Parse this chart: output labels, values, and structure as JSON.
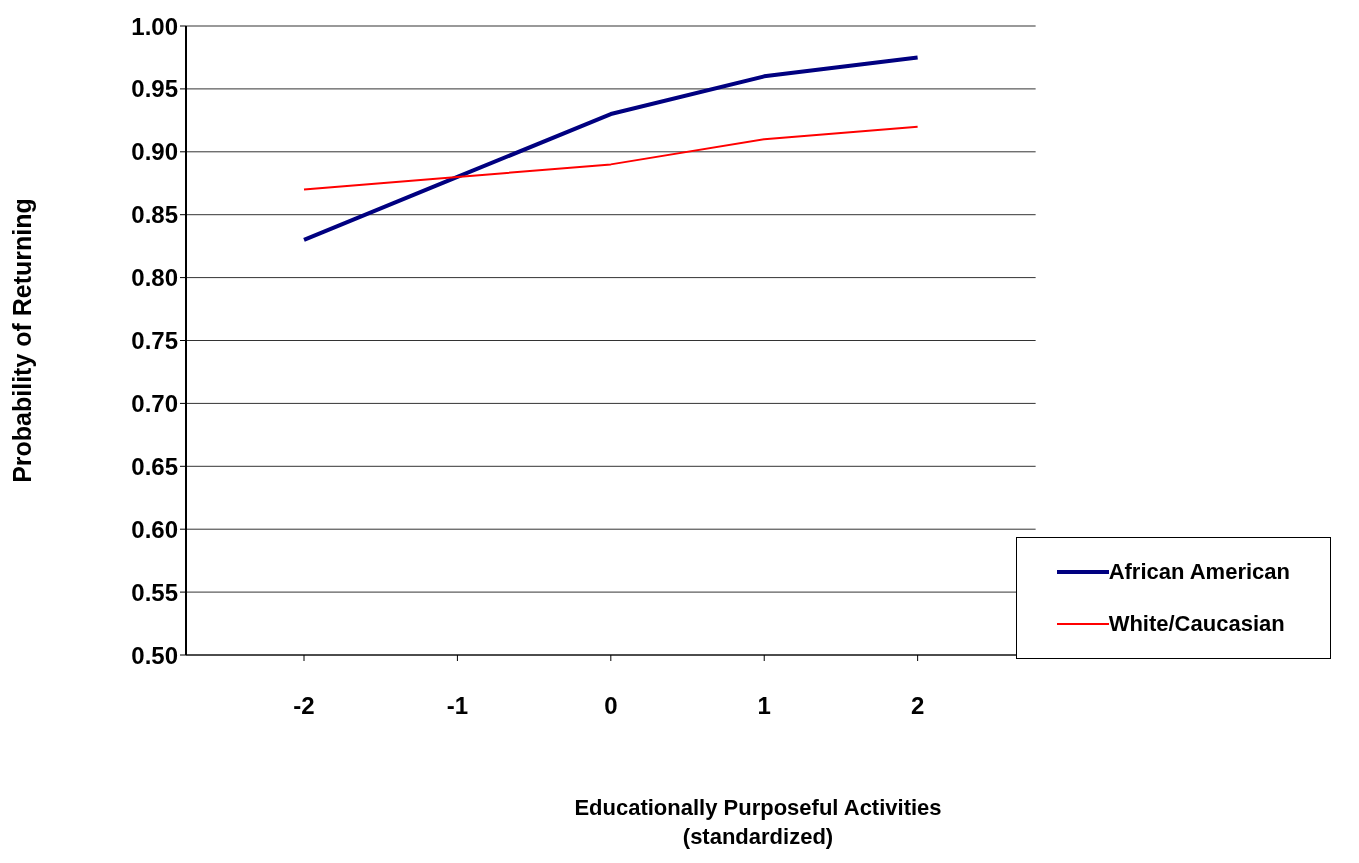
{
  "chart_data": {
    "type": "line",
    "xlabel": "Educationally Purposeful Activities\n(standardized)",
    "ylabel": "Probability of Returning",
    "categories": [
      "-2",
      "-1",
      "0",
      "1",
      "2"
    ],
    "series": [
      {
        "name": "African American",
        "color": "#000080",
        "values": [
          0.83,
          0.88,
          0.93,
          0.96,
          0.975
        ]
      },
      {
        "name": "White/Caucasian",
        "color": "#ff0000",
        "values": [
          0.87,
          0.88,
          0.89,
          0.91,
          0.92
        ]
      }
    ],
    "ylim": [
      0.5,
      1.0
    ],
    "yticks": [
      {
        "value": 0.5,
        "label": "0.50"
      },
      0.55,
      {
        "value": 0.6,
        "label": "0.60"
      },
      0.65,
      {
        "value": 0.7,
        "label": "0.70"
      },
      0.75,
      {
        "value": 0.8,
        "label": "0.80"
      },
      0.85,
      {
        "value": 0.9,
        "label": "0.90"
      },
      0.95,
      {
        "value": 1.0,
        "label": "1.00"
      }
    ],
    "grid": "y",
    "legend": "bottom right",
    "marker": "none",
    "line_style": "solid"
  }
}
